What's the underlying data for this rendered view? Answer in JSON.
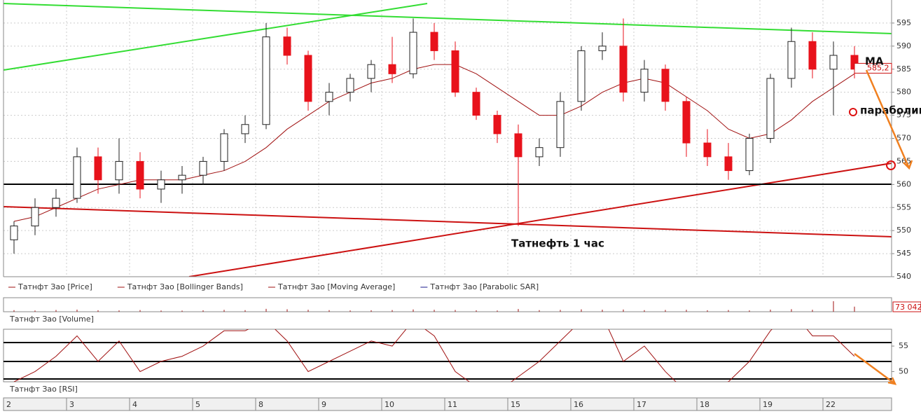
{
  "chart_data": {
    "type": "candlestick",
    "open": [
      548,
      551,
      555,
      557,
      566,
      561,
      565,
      559,
      561,
      562,
      565,
      571,
      573,
      592,
      588,
      578,
      580,
      583,
      586,
      584,
      593,
      589,
      580,
      575,
      571,
      566,
      568,
      578,
      589,
      590,
      580,
      585,
      578,
      569,
      566,
      563,
      570,
      583,
      591,
      585,
      588
    ],
    "high": [
      552,
      557,
      559,
      568,
      568,
      570,
      567,
      563,
      564,
      566,
      572,
      575,
      595,
      594,
      589,
      582,
      584,
      587,
      592,
      596,
      595,
      591,
      581,
      576,
      573,
      570,
      580,
      590,
      593,
      596,
      587,
      586,
      579,
      572,
      569,
      571,
      584,
      594,
      593,
      591,
      590
    ],
    "low": [
      545,
      549,
      553,
      556,
      558,
      558,
      557,
      556,
      558,
      560,
      563,
      569,
      572,
      586,
      576,
      575,
      578,
      580,
      582,
      583,
      587,
      579,
      574,
      569,
      551,
      564,
      566,
      576,
      587,
      578,
      578,
      576,
      566,
      564,
      561,
      562,
      569,
      581,
      583,
      575,
      583
    ],
    "close": [
      551,
      555,
      557,
      566,
      561,
      565,
      559,
      561,
      562,
      565,
      571,
      573,
      592,
      588,
      578,
      580,
      583,
      586,
      584,
      593,
      589,
      580,
      575,
      571,
      566,
      568,
      578,
      589,
      590,
      580,
      585,
      578,
      569,
      566,
      563,
      570,
      583,
      591,
      585,
      588,
      585
    ],
    "up_color": "#ffffff",
    "down_color": "#e8121b",
    "series": [
      {
        "name": "Татнфт Зао [Moving Average]",
        "color": "#a01010",
        "values": [
          552,
          553,
          555,
          557,
          559,
          560,
          561,
          561,
          561,
          562,
          563,
          565,
          568,
          572,
          575,
          578,
          580,
          582,
          583,
          585,
          586,
          586,
          584,
          581,
          578,
          575,
          575,
          577,
          580,
          582,
          583,
          582,
          579,
          576,
          572,
          570,
          571,
          574,
          578,
          581,
          584
        ]
      }
    ],
    "legend": [
      {
        "name": "Татнфт Зао [Price]",
        "color": "#a01010"
      },
      {
        "name": "Татнфт Зао [Bollinger Bands]",
        "color": "#a01010"
      },
      {
        "name": "Татнфт Зао [Moving Average]",
        "color": "#a01010"
      },
      {
        "name": "Татнфт Зао [Parabolic SAR]",
        "color": "#1a1a8c"
      }
    ],
    "ylim": [
      540,
      600
    ],
    "yticks": [
      540,
      545,
      550,
      555,
      560,
      565,
      570,
      575,
      580,
      585,
      590,
      595
    ],
    "grid": true,
    "last_price": {
      "value": 585.2,
      "label": "585,2"
    },
    "days": [
      "2",
      "3",
      "4",
      "5",
      "8",
      "9",
      "10",
      "11",
      "15",
      "16",
      "17",
      "18",
      "19",
      "22"
    ],
    "annotations": [
      "МА",
      "параболик",
      "Татнефть  1 час"
    ],
    "volume": {
      "label": "Татнфт Зао [Volume]",
      "color": "#a01010",
      "ylim": [
        0,
        200000
      ],
      "values": [
        22000,
        18000,
        25000,
        30000,
        21000,
        19000,
        24000,
        17000,
        16000,
        20000,
        26000,
        23000,
        41000,
        35000,
        28000,
        22000,
        19000,
        21000,
        24000,
        33000,
        27000,
        25000,
        20000,
        18000,
        39000,
        22000,
        26000,
        34000,
        29000,
        31000,
        23000,
        25000,
        28000,
        21000,
        24000,
        19000,
        30000,
        36000,
        27000,
        150000,
        73042
      ],
      "last": {
        "value": 73042,
        "label": "73 042"
      }
    },
    "rsi": {
      "label": "Татнфт Зао [RSI]",
      "color": "#a01010",
      "ylim": [
        48,
        58.3
      ],
      "yticks": [
        50,
        55
      ],
      "values": [
        48,
        50,
        53,
        57,
        52,
        56,
        50,
        52,
        53,
        55,
        58,
        58,
        60,
        56,
        50,
        52,
        54,
        56,
        55,
        60,
        57,
        50,
        47,
        46,
        49,
        52,
        56,
        60,
        61,
        52,
        55,
        50,
        46,
        47,
        48,
        52,
        58,
        62,
        57,
        57,
        53
      ]
    }
  }
}
